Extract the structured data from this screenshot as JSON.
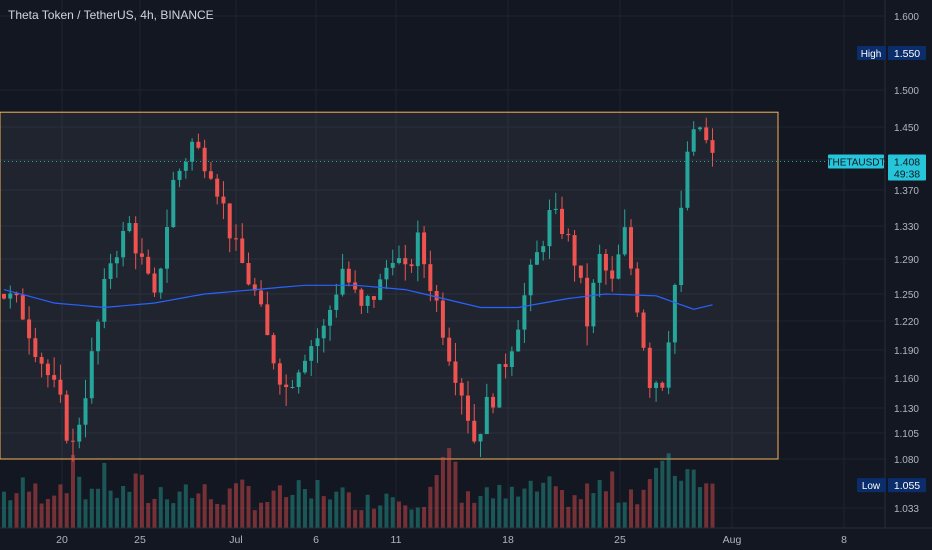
{
  "header": {
    "title": "Theta Token / TetherUS, 4h, BINANCE"
  },
  "colors": {
    "up": "#26a69a",
    "down": "#ef5350",
    "ma": "#2962ff",
    "box": "#f5b25a",
    "badge": "#0b2d6b",
    "price_badge": "#26c6da"
  },
  "price_axis": {
    "ticks": [
      "1.600",
      "1.500",
      "1.450",
      "1.410",
      "1.370",
      "1.330",
      "1.290",
      "1.250",
      "1.220",
      "1.190",
      "1.160",
      "1.130",
      "1.105",
      "1.080",
      "1.033"
    ],
    "high_label": "High",
    "high_value": "1.550",
    "low_label": "Low",
    "low_value": "1.055",
    "symbol": "THETAUSDT",
    "last_price": "1.408",
    "countdown": "49:38"
  },
  "time_axis": {
    "labels": [
      "20",
      "25",
      "Jul",
      "6",
      "11",
      "18",
      "25",
      "Aug",
      "8"
    ]
  },
  "chart_data": {
    "type": "candlestick",
    "title": "Theta Token / TetherUS, 4h, BINANCE",
    "symbol": "THETAUSDT",
    "timeframe": "4h",
    "exchange": "BINANCE",
    "last_price": 1.408,
    "high": 1.55,
    "low": 1.055,
    "range_box": {
      "top": 1.47,
      "bottom": 1.08
    },
    "x_labels": [
      "20",
      "25",
      "Jul",
      "6",
      "11",
      "18",
      "25",
      "Aug",
      "8"
    ],
    "y_ticks": [
      1.6,
      1.5,
      1.45,
      1.41,
      1.37,
      1.33,
      1.29,
      1.25,
      1.22,
      1.19,
      1.16,
      1.13,
      1.105,
      1.08,
      1.033
    ],
    "close_path": [
      [
        0,
        1.25
      ],
      [
        3,
        1.23
      ],
      [
        6,
        1.18
      ],
      [
        9,
        1.13
      ],
      [
        11,
        1.09
      ],
      [
        14,
        1.18
      ],
      [
        17,
        1.29
      ],
      [
        20,
        1.33
      ],
      [
        24,
        1.24
      ],
      [
        27,
        1.38
      ],
      [
        30,
        1.43
      ],
      [
        33,
        1.4
      ],
      [
        37,
        1.3
      ],
      [
        40,
        1.25
      ],
      [
        42,
        1.2
      ],
      [
        45,
        1.15
      ],
      [
        48,
        1.19
      ],
      [
        51,
        1.21
      ],
      [
        54,
        1.28
      ],
      [
        57,
        1.23
      ],
      [
        60,
        1.26
      ],
      [
        62,
        1.3
      ],
      [
        64,
        1.27
      ],
      [
        66,
        1.31
      ],
      [
        69,
        1.24
      ],
      [
        71,
        1.19
      ],
      [
        73,
        1.15
      ],
      [
        75,
        1.1
      ],
      [
        77,
        1.13
      ],
      [
        79,
        1.16
      ],
      [
        81,
        1.2
      ],
      [
        84,
        1.27
      ],
      [
        87,
        1.34
      ],
      [
        89,
        1.33
      ],
      [
        91,
        1.29
      ],
      [
        93,
        1.22
      ],
      [
        95,
        1.29
      ],
      [
        97,
        1.26
      ],
      [
        99,
        1.32
      ],
      [
        101,
        1.24
      ],
      [
        103,
        1.16
      ],
      [
        105,
        1.16
      ],
      [
        107,
        1.26
      ],
      [
        109,
        1.42
      ],
      [
        111,
        1.45
      ],
      [
        113,
        1.41
      ]
    ],
    "ma_path": [
      [
        0,
        1.255
      ],
      [
        8,
        1.24
      ],
      [
        16,
        1.235
      ],
      [
        24,
        1.24
      ],
      [
        32,
        1.25
      ],
      [
        40,
        1.255
      ],
      [
        48,
        1.26
      ],
      [
        56,
        1.26
      ],
      [
        64,
        1.255
      ],
      [
        70,
        1.245
      ],
      [
        76,
        1.235
      ],
      [
        82,
        1.235
      ],
      [
        90,
        1.245
      ],
      [
        96,
        1.25
      ],
      [
        104,
        1.248
      ],
      [
        110,
        1.233
      ],
      [
        113,
        1.238
      ]
    ],
    "volume_profile": [
      0.55,
      0.62,
      0.58,
      0.7,
      0.85,
      0.6,
      0.75,
      0.55,
      0.65,
      0.5,
      0.58,
      0.62,
      0.55,
      0.48,
      0.52,
      0.6,
      0.45,
      0.5,
      0.55,
      0.48,
      0.62,
      0.5,
      0.45,
      0.42,
      0.55,
      0.5,
      0.48,
      0.7,
      0.95,
      0.45,
      0.6,
      0.52,
      0.5,
      0.55,
      0.62,
      0.48,
      0.5,
      0.58,
      0.65,
      0.55,
      0.6,
      0.85,
      0.9,
      1.0,
      0.88,
      0.7
    ],
    "num_candles": 114
  }
}
